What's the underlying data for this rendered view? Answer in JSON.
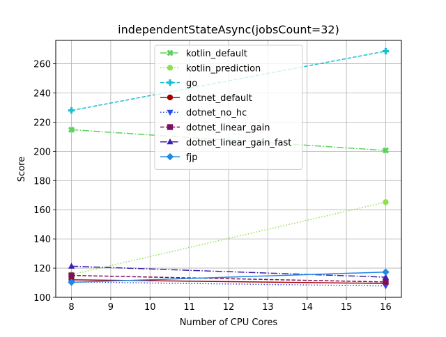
{
  "chart_data": {
    "type": "line",
    "title": "independentStateAsync(jobsCount=32)",
    "xlabel": "Number of CPU Cores",
    "ylabel": "Score",
    "xlim": [
      7.6,
      16.4
    ],
    "ylim": [
      100,
      276
    ],
    "xticks": [
      8,
      9,
      10,
      11,
      12,
      13,
      14,
      15,
      16
    ],
    "yticks": [
      100,
      120,
      140,
      160,
      180,
      200,
      220,
      240,
      260
    ],
    "grid": true,
    "legend_position": "top-center",
    "x": [
      8,
      16
    ],
    "series": [
      {
        "name": "kotlin_default",
        "values": [
          214.8,
          200.6
        ],
        "color": "#5ad15a",
        "dash": "dashdot",
        "marker": "x-filled"
      },
      {
        "name": "kotlin_prediction",
        "values": [
          115.5,
          165.2
        ],
        "color": "#8fe04f",
        "dash": "dotted",
        "marker": "circle"
      },
      {
        "name": "go",
        "values": [
          228.0,
          268.6
        ],
        "color": "#17becf",
        "dash": "dashed",
        "marker": "plus-filled"
      },
      {
        "name": "dotnet_default",
        "values": [
          112.0,
          109.5
        ],
        "color": "#a50000",
        "dash": "solid",
        "marker": "circle"
      },
      {
        "name": "dotnet_no_hc",
        "values": [
          110.5,
          107.8
        ],
        "color": "#2a4de8",
        "dash": "dotted",
        "marker": "triangle-down"
      },
      {
        "name": "dotnet_linear_gain",
        "values": [
          115.0,
          110.5
        ],
        "color": "#7f0f5f",
        "dash": "dashed",
        "marker": "square"
      },
      {
        "name": "dotnet_linear_gain_fast",
        "values": [
          121.3,
          113.8
        ],
        "color": "#3f1fa8",
        "dash": "dashdot",
        "marker": "triangle-up"
      },
      {
        "name": "fjp",
        "values": [
          110.3,
          117.3
        ],
        "color": "#1e88e5",
        "dash": "solid",
        "marker": "diamond"
      }
    ]
  }
}
